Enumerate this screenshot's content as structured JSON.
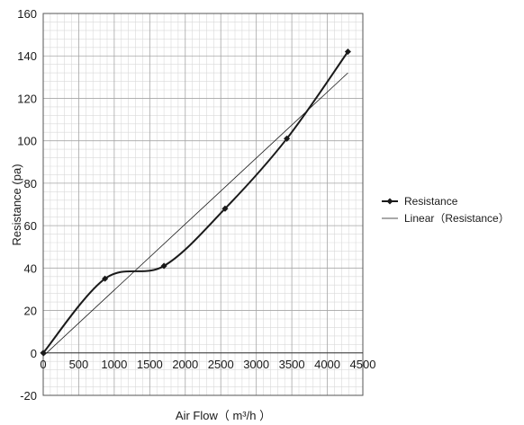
{
  "chart_data": {
    "type": "scatter",
    "xlabel": "Air Flow（ m³/h ）",
    "ylabel": "Resistance (pa)",
    "xlim": [
      0,
      4500
    ],
    "ylim": [
      -20,
      160
    ],
    "xticks": [
      0,
      500,
      1000,
      1500,
      2000,
      2500,
      3000,
      3500,
      4000,
      4500
    ],
    "yticks": [
      -20,
      0,
      20,
      40,
      60,
      80,
      100,
      120,
      140,
      160
    ],
    "grid": true,
    "legend_position": "right",
    "series": [
      {
        "name": "Resistance",
        "style": "smooth-line-with-markers",
        "color": "#1a1a1a",
        "x": [
          0,
          870,
          1700,
          2560,
          3430,
          4290
        ],
        "y": [
          0,
          35,
          41,
          68,
          101,
          142
        ]
      },
      {
        "name": "Linear（Resistance）",
        "style": "trendline",
        "color": "#1a1a1a",
        "x": [
          0,
          4290
        ],
        "y": [
          -1.5,
          132
        ]
      }
    ]
  }
}
